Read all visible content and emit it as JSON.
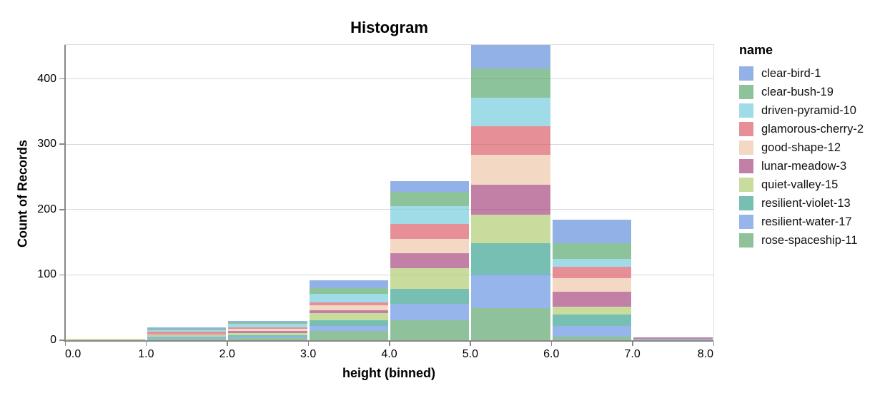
{
  "chart_data": {
    "type": "bar",
    "stacked": true,
    "title": "Histogram",
    "xlabel": "height (binned)",
    "ylabel": "Count of Records",
    "legend_title": "name",
    "legend_position": "right",
    "grid": true,
    "xlim": [
      0,
      8
    ],
    "ylim": [
      0,
      452
    ],
    "bin_width": 1,
    "x_tick_labels": [
      "0.0",
      "1.0",
      "2.0",
      "3.0",
      "4.0",
      "5.0",
      "6.0",
      "7.0",
      "8.0"
    ],
    "y_tick_labels": [
      "0",
      "100",
      "200",
      "300",
      "400"
    ],
    "y_tick_values": [
      0,
      100,
      200,
      300,
      400
    ],
    "bins": [
      [
        0,
        1
      ],
      [
        1,
        2
      ],
      [
        2,
        3
      ],
      [
        3,
        4
      ],
      [
        4,
        5
      ],
      [
        5,
        6
      ],
      [
        6,
        7
      ],
      [
        7,
        8
      ]
    ],
    "bin_totals": [
      2,
      20,
      30,
      92,
      243,
      452,
      185,
      4
    ],
    "fill_opacity": 0.7,
    "series": [
      {
        "name": "clear-bird-1",
        "color": "#6490db",
        "values": [
          0,
          2,
          3,
          12,
          16,
          36,
          36,
          0
        ]
      },
      {
        "name": "clear-bush-19",
        "color": "#5da971",
        "values": [
          0,
          3,
          2,
          9,
          22,
          45,
          25,
          0
        ]
      },
      {
        "name": "driven-pyramid-10",
        "color": "#76cdde",
        "values": [
          0,
          2,
          5,
          13,
          27,
          43,
          12,
          0
        ]
      },
      {
        "name": "glamorous-cherry-2",
        "color": "#db606a",
        "values": [
          0,
          3,
          3,
          5,
          23,
          44,
          17,
          0
        ]
      },
      {
        "name": "good-shape-12",
        "color": "#eec7a9",
        "values": [
          0,
          1,
          3,
          7,
          22,
          46,
          21,
          0
        ]
      },
      {
        "name": "lunar-meadow-3",
        "color": "#aa4a80",
        "values": [
          0,
          1,
          3,
          5,
          23,
          46,
          23,
          2
        ]
      },
      {
        "name": "quiet-valley-15",
        "color": "#b0ce74",
        "values": [
          2,
          2,
          3,
          10,
          31,
          44,
          12,
          0
        ]
      },
      {
        "name": "resilient-violet-13",
        "color": "#3da492",
        "values": [
          0,
          2,
          2,
          9,
          23,
          48,
          17,
          0
        ]
      },
      {
        "name": "resilient-water-17",
        "color": "#6a95e1",
        "values": [
          0,
          2,
          3,
          8,
          25,
          51,
          17,
          1
        ]
      },
      {
        "name": "rose-spaceship-11",
        "color": "#60a870",
        "values": [
          0,
          2,
          3,
          14,
          31,
          49,
          5,
          1
        ]
      }
    ],
    "stack_order": "reverse-legend (rose-spaceship-11 at bottom, clear-bird-1 on top)",
    "axis_color": "#888888",
    "grid_color": "#d8d8d8",
    "text_color": "#000000"
  }
}
